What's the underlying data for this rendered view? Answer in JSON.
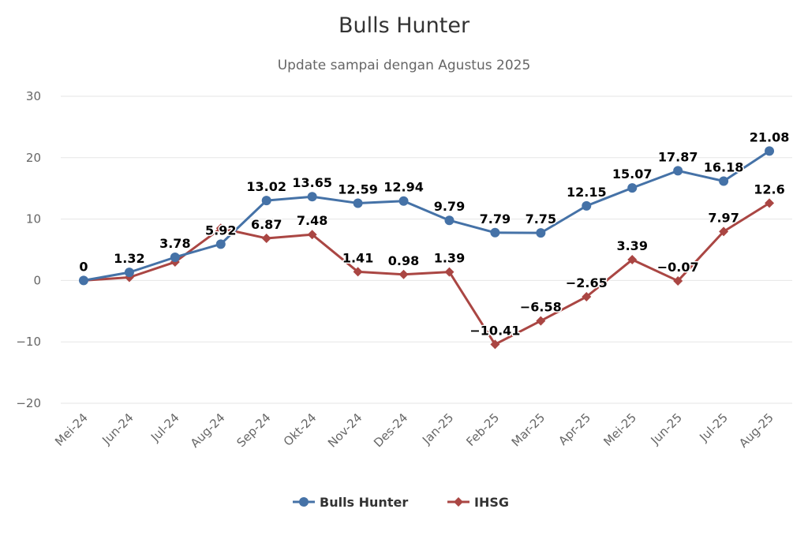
{
  "chart_data": {
    "type": "line",
    "title": "Bulls Hunter",
    "subtitle": "Update sampai dengan Agustus 2025",
    "categories": [
      "Mei-24",
      "Jun-24",
      "Jul-24",
      "Aug-24",
      "Sep-24",
      "Okt-24",
      "Nov-24",
      "Des-24",
      "Jan-25",
      "Feb-25",
      "Mar-25",
      "Apr-25",
      "Mei-25",
      "Jun-25",
      "Jul-25",
      "Aug-25"
    ],
    "series": [
      {
        "name": "Bulls Hunter",
        "color": "#4572a7",
        "marker": "circle",
        "values": [
          0,
          1.32,
          3.78,
          5.92,
          13.02,
          13.65,
          12.59,
          12.94,
          9.79,
          7.79,
          7.75,
          12.15,
          15.07,
          17.87,
          16.18,
          21.08
        ],
        "labels": [
          "0",
          "1.32",
          "3.78",
          "5.92",
          "13.02",
          "13.65",
          "12.59",
          "12.94",
          "9.79",
          "7.79",
          "7.75",
          "12.15",
          "15.07",
          "17.87",
          "16.18",
          "21.08"
        ]
      },
      {
        "name": "IHSG",
        "color": "#aa4643",
        "marker": "diamond",
        "values": [
          0,
          0.5,
          3.0,
          8.5,
          6.87,
          7.48,
          1.41,
          0.98,
          1.39,
          -10.41,
          -6.58,
          -2.65,
          3.39,
          -0.07,
          7.97,
          12.6
        ],
        "labels": [
          "",
          "",
          "",
          "",
          "6.87",
          "7.48",
          "1.41",
          "0.98",
          "1.39",
          "−10.41",
          "−6.58",
          "−2.65",
          "3.39",
          "−0.07",
          "7.97",
          "12.6"
        ]
      }
    ],
    "ylim": [
      -20,
      30
    ],
    "yticks": [
      {
        "value": 30,
        "label": "30"
      },
      {
        "value": 20,
        "label": "20"
      },
      {
        "value": 10,
        "label": "10"
      },
      {
        "value": 0,
        "label": "0"
      },
      {
        "value": -10,
        "label": "−10"
      },
      {
        "value": -20,
        "label": "−20"
      }
    ],
    "grid": true,
    "legend": "bottom-center"
  }
}
